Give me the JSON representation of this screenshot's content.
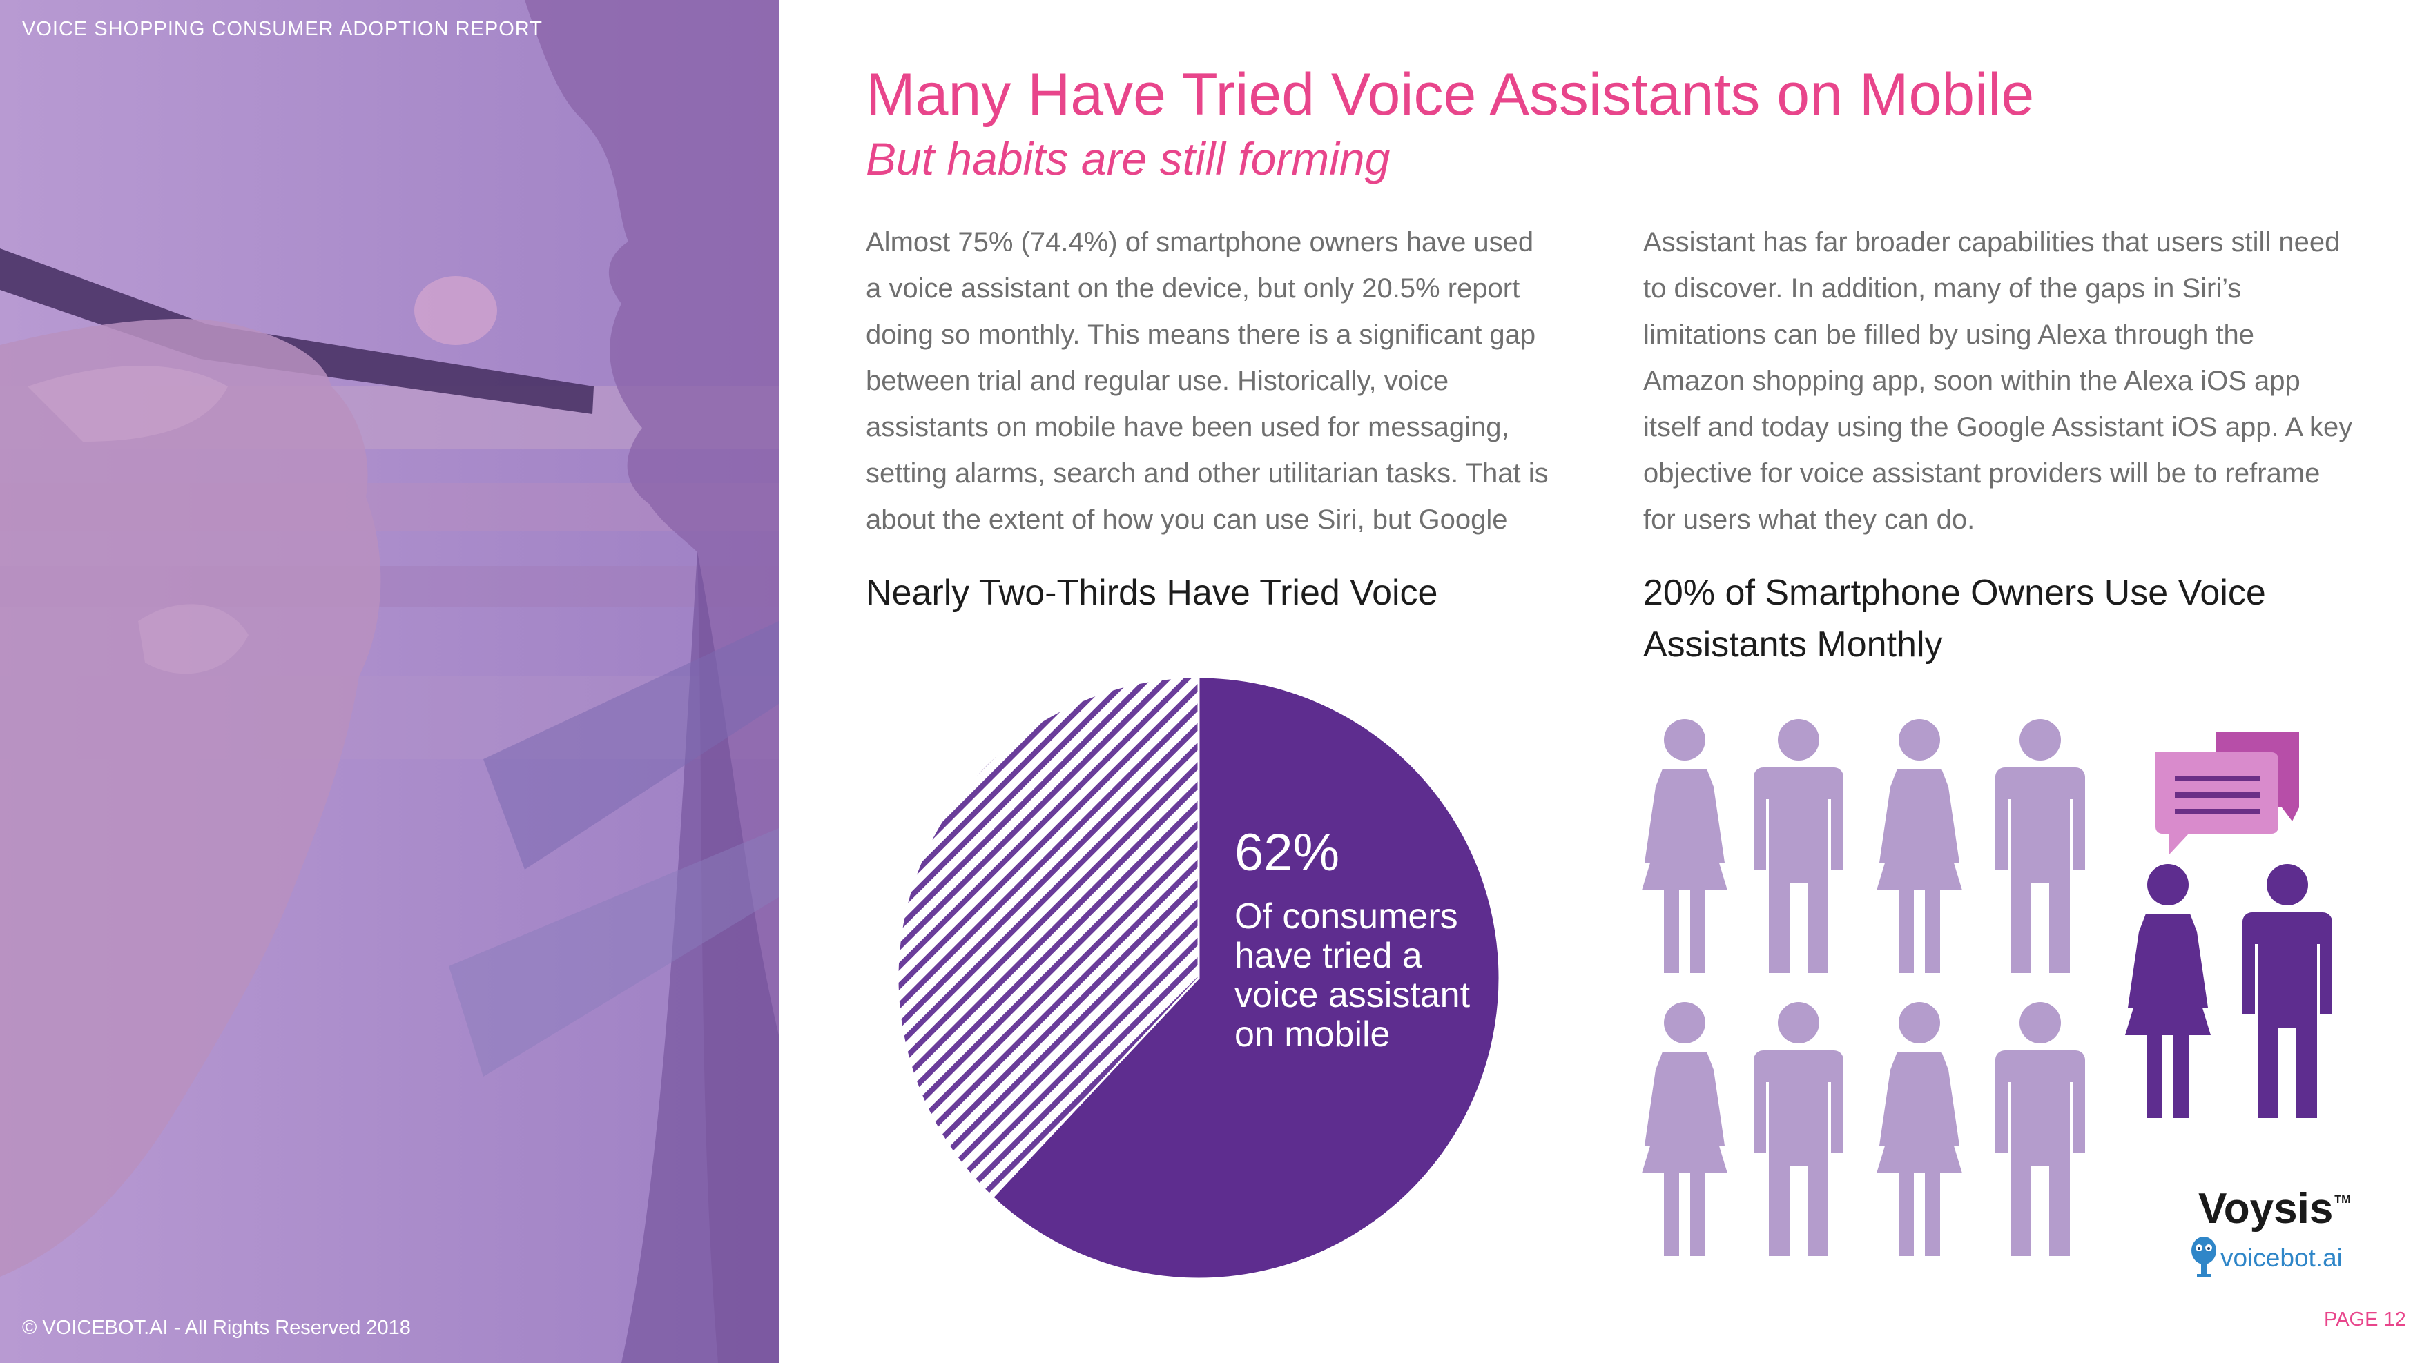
{
  "sidebar": {
    "report_title": "VOICE SHOPPING CONSUMER ADOPTION REPORT",
    "copyright": "© VOICEBOT.AI - All Rights Reserved 2018"
  },
  "header": {
    "title": "Many Have Tried Voice Assistants on Mobile",
    "subtitle": "But habits are still forming"
  },
  "body": {
    "col1": "Almost 75% (74.4%) of smartphone owners have used a voice assistant on the device, but only 20.5% report doing so monthly. This means there is a significant gap between trial and regular use. Historically, voice assistants on mobile have been used for messaging, setting alarms, search and other utilitarian tasks. That is about the extent of how you can use Siri, but Google",
    "col2": "Assistant has far broader capabilities that users still need to discover. In addition, many of the gaps in Siri’s limitations can be filled by using Alexa through the Amazon shopping app, soon within the Alexa iOS app itself and today using the Google Assistant iOS app. A key objective for voice assistant providers will be to reframe for users what they can do."
  },
  "pie_section": {
    "heading": "Nearly Two-Thirds Have Tried Voice",
    "percent_label": "62%",
    "caption": "Of consumers have tried a voice assistant on mobile"
  },
  "people_section": {
    "heading": "20% of Smartphone Owners Use Voice Assistants Monthly",
    "icon_light": "person-icon",
    "icon_dark": "person-icon",
    "icon_speech": "speech-bubble-icon"
  },
  "chart_data": [
    {
      "type": "pie",
      "categories": [
        "Of consumers have tried a voice assistant on mobile",
        ""
      ],
      "values": [
        62,
        38
      ],
      "colors": [
        "#5e2d8f",
        "#ffffff"
      ],
      "hatched": [
        false,
        true
      ],
      "title": "Nearly Two-Thirds Have Tried Voice"
    },
    {
      "type": "pictograph",
      "title": "20% of Smartphone Owners Use Voice Assistants Monthly",
      "total_icons": 10,
      "highlighted_icons": 2,
      "highlight_percent": 20,
      "colors": {
        "highlight": "#5e2d8f",
        "base": "#b49ccc"
      }
    }
  ],
  "logos": {
    "voysis": "Voysis",
    "voysis_tm": "TM",
    "voicebot": "voicebot.ai"
  },
  "footer": {
    "page": "PAGE 12"
  },
  "colors": {
    "accent_pink": "#e8458b",
    "purple_dark": "#5e2d8f",
    "purple_light": "#b49ccc",
    "body_text": "#6f6f6f"
  }
}
